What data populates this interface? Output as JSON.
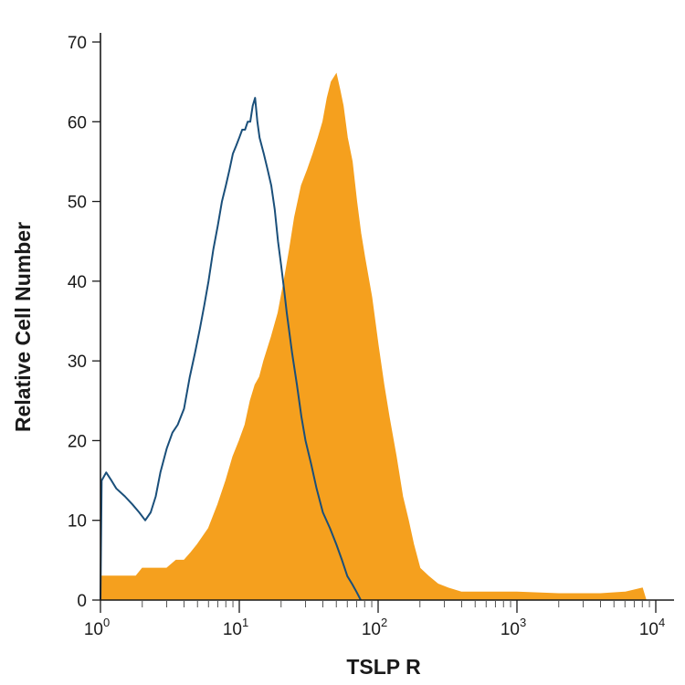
{
  "chart_data": {
    "type": "area",
    "title": "",
    "xlabel": "TSLP R",
    "ylabel": "Relative Cell Number",
    "x_scale": "log",
    "xlim": [
      1,
      10000
    ],
    "ylim": [
      0,
      70
    ],
    "x_ticks": [
      {
        "value": 1,
        "base": "10",
        "exp": "0"
      },
      {
        "value": 10,
        "base": "10",
        "exp": "1"
      },
      {
        "value": 100,
        "base": "10",
        "exp": "2"
      },
      {
        "value": 1000,
        "base": "10",
        "exp": "3"
      },
      {
        "value": 10000,
        "base": "10",
        "exp": "4"
      }
    ],
    "y_ticks": [
      0,
      10,
      20,
      30,
      40,
      50,
      60,
      70
    ],
    "grid": false,
    "legend": "none",
    "series": [
      {
        "style": "filled",
        "color": "#f5a01e",
        "points": [
          [
            1.0,
            3
          ],
          [
            1.2,
            3
          ],
          [
            1.5,
            3
          ],
          [
            1.8,
            3
          ],
          [
            2.0,
            4
          ],
          [
            2.5,
            4
          ],
          [
            3.0,
            4
          ],
          [
            3.5,
            5
          ],
          [
            4.0,
            5
          ],
          [
            4.5,
            6
          ],
          [
            5.0,
            7
          ],
          [
            6.0,
            9
          ],
          [
            7.0,
            12
          ],
          [
            8.0,
            15
          ],
          [
            9.0,
            18
          ],
          [
            10.0,
            20
          ],
          [
            11.0,
            22
          ],
          [
            12.0,
            25
          ],
          [
            13.0,
            27
          ],
          [
            14.0,
            28
          ],
          [
            15.0,
            30
          ],
          [
            17.0,
            33
          ],
          [
            19.0,
            36
          ],
          [
            21.0,
            40
          ],
          [
            23.0,
            44
          ],
          [
            25.0,
            48
          ],
          [
            28.0,
            52
          ],
          [
            31.0,
            54
          ],
          [
            34.0,
            56
          ],
          [
            37.0,
            58
          ],
          [
            40.0,
            60
          ],
          [
            43.0,
            63
          ],
          [
            46.0,
            65
          ],
          [
            50.0,
            66
          ],
          [
            53.0,
            64
          ],
          [
            56.0,
            62
          ],
          [
            60.0,
            58
          ],
          [
            65.0,
            55
          ],
          [
            70.0,
            50
          ],
          [
            75.0,
            46
          ],
          [
            80.0,
            43
          ],
          [
            90.0,
            38
          ],
          [
            100.0,
            32
          ],
          [
            110.0,
            27
          ],
          [
            120.0,
            23
          ],
          [
            135.0,
            18
          ],
          [
            150.0,
            13
          ],
          [
            165.0,
            10
          ],
          [
            180.0,
            7
          ],
          [
            200.0,
            4
          ],
          [
            230.0,
            3
          ],
          [
            270.0,
            2
          ],
          [
            320.0,
            1.5
          ],
          [
            400.0,
            1
          ],
          [
            600.0,
            1
          ],
          [
            1000.0,
            1
          ],
          [
            2000.0,
            0.8
          ],
          [
            4000.0,
            0.8
          ],
          [
            6000.0,
            1
          ],
          [
            8000.0,
            1.5
          ],
          [
            8500.0,
            0
          ]
        ]
      },
      {
        "style": "outline",
        "color": "#1a4f7a",
        "points": [
          [
            1.0,
            0
          ],
          [
            1.02,
            15
          ],
          [
            1.1,
            16
          ],
          [
            1.2,
            15
          ],
          [
            1.3,
            14
          ],
          [
            1.5,
            13
          ],
          [
            1.7,
            12
          ],
          [
            1.9,
            11
          ],
          [
            2.1,
            10
          ],
          [
            2.3,
            11
          ],
          [
            2.5,
            13
          ],
          [
            2.7,
            16
          ],
          [
            3.0,
            19
          ],
          [
            3.3,
            21
          ],
          [
            3.6,
            22
          ],
          [
            4.0,
            24
          ],
          [
            4.4,
            28
          ],
          [
            4.8,
            31
          ],
          [
            5.2,
            34
          ],
          [
            5.6,
            37
          ],
          [
            6.0,
            40
          ],
          [
            6.5,
            44
          ],
          [
            7.0,
            47
          ],
          [
            7.5,
            50
          ],
          [
            8.0,
            52
          ],
          [
            8.5,
            54
          ],
          [
            9.0,
            56
          ],
          [
            9.5,
            57
          ],
          [
            10.0,
            58
          ],
          [
            10.5,
            59
          ],
          [
            11.0,
            59
          ],
          [
            11.5,
            60
          ],
          [
            12.0,
            60
          ],
          [
            12.5,
            62
          ],
          [
            13.0,
            63
          ],
          [
            13.5,
            60
          ],
          [
            14.0,
            58
          ],
          [
            15.0,
            56
          ],
          [
            16.0,
            54
          ],
          [
            17.0,
            52
          ],
          [
            18.0,
            49
          ],
          [
            19.0,
            45
          ],
          [
            20.0,
            42
          ],
          [
            21.0,
            39
          ],
          [
            22.0,
            36
          ],
          [
            24.0,
            31
          ],
          [
            26.0,
            27
          ],
          [
            28.0,
            23
          ],
          [
            30.0,
            20
          ],
          [
            33.0,
            17
          ],
          [
            36.0,
            14
          ],
          [
            40.0,
            11
          ],
          [
            45.0,
            9
          ],
          [
            50.0,
            7
          ],
          [
            55.0,
            5
          ],
          [
            60.0,
            3
          ],
          [
            65.0,
            2
          ],
          [
            70.0,
            1
          ],
          [
            75.0,
            0
          ]
        ]
      }
    ]
  }
}
